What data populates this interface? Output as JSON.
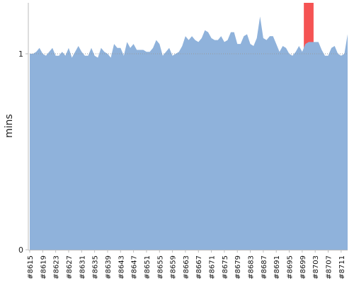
{
  "chart_data": {
    "type": "area",
    "ylabel": "mins",
    "xlabel": "",
    "ylim": [
      0,
      1.26
    ],
    "y_ticks": [
      {
        "value": 0,
        "label": "0"
      },
      {
        "value": 1,
        "label": "1"
      }
    ],
    "reference_line": {
      "value": 1,
      "style": "dotted"
    },
    "colors": {
      "area": "#8fb2db",
      "highlight": "#f55353",
      "axis": "#bbbbbb",
      "reference": "#9a9a9a"
    },
    "x_start": 8615,
    "x_end": 8713,
    "x_ticks": [
      "#8615",
      "#8619",
      "#8623",
      "#8627",
      "#8631",
      "#8635",
      "#8639",
      "#8643",
      "#8647",
      "#8651",
      "#8655",
      "#8659",
      "#8663",
      "#8667",
      "#8671",
      "#8675",
      "#8679",
      "#8683",
      "#8687",
      "#8691",
      "#8695",
      "#8699",
      "#8703",
      "#8707",
      "#8711"
    ],
    "highlight": {
      "from": 8699.5,
      "to": 8702.5
    },
    "series": [
      {
        "values": [
          1.0,
          1.0,
          1.01,
          1.03,
          1.0,
          0.99,
          1.01,
          1.03,
          0.99,
          0.99,
          1.01,
          0.99,
          1.03,
          0.98,
          1.01,
          1.04,
          1.01,
          0.99,
          0.99,
          1.03,
          0.99,
          0.98,
          1.03,
          1.01,
          1.0,
          0.98,
          1.05,
          1.03,
          1.03,
          0.99,
          1.06,
          1.03,
          1.05,
          1.02,
          1.02,
          1.02,
          1.01,
          1.01,
          1.03,
          1.07,
          1.05,
          0.99,
          1.01,
          1.03,
          0.99,
          1.0,
          1.01,
          1.04,
          1.09,
          1.07,
          1.09,
          1.07,
          1.06,
          1.08,
          1.12,
          1.11,
          1.08,
          1.07,
          1.07,
          1.09,
          1.06,
          1.07,
          1.11,
          1.11,
          1.05,
          1.05,
          1.09,
          1.1,
          1.05,
          1.04,
          1.08,
          1.19,
          1.08,
          1.07,
          1.09,
          1.09,
          1.05,
          1.01,
          1.04,
          1.03,
          1.0,
          0.99,
          1.01,
          1.04,
          1.01,
          1.05,
          1.06,
          1.06,
          1.06,
          1.06,
          1.02,
          0.99,
          0.99,
          1.03,
          1.04,
          1.0,
          0.99,
          1.0,
          1.1
        ]
      }
    ]
  }
}
